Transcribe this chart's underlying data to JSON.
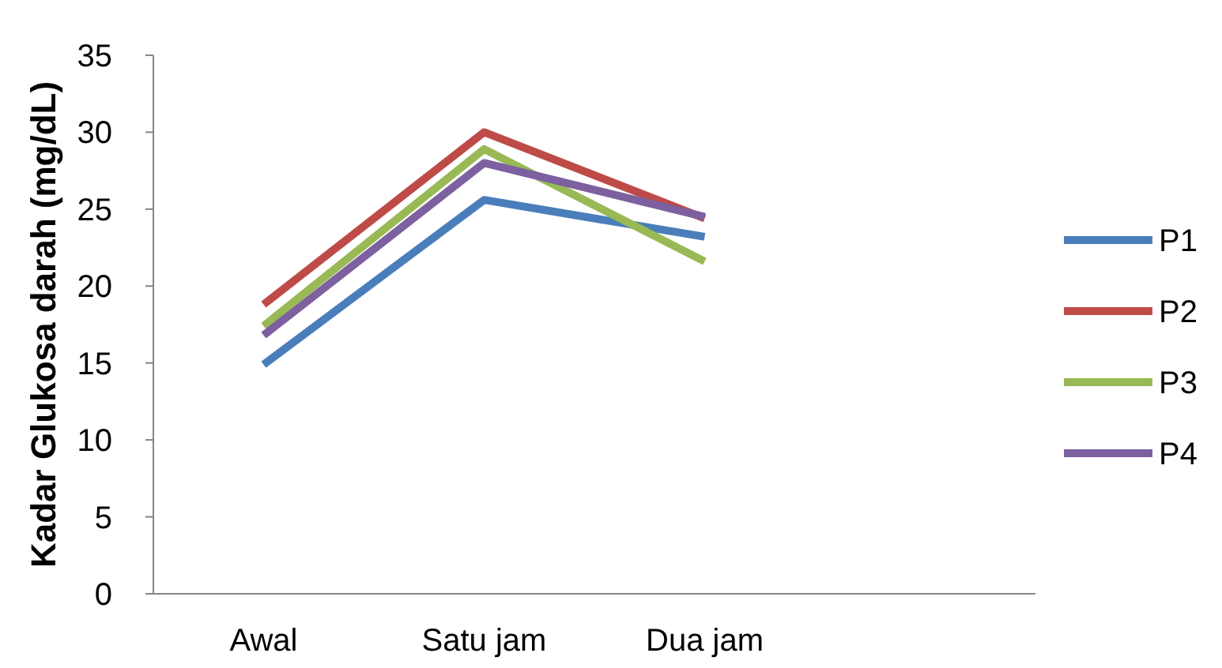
{
  "chart_data": {
    "type": "line",
    "ylabel": "Kadar Glukosa darah (mg/dL)",
    "categories": [
      "Awal",
      "Satu jam",
      "Dua jam",
      null
    ],
    "series": [
      {
        "name": "P1",
        "color": "#4a7ebb",
        "values": [
          14.9,
          25.6,
          23.2,
          null
        ]
      },
      {
        "name": "P2",
        "color": "#be4b48",
        "values": [
          18.8,
          30.0,
          24.4,
          null
        ]
      },
      {
        "name": "P3",
        "color": "#98b954",
        "values": [
          17.4,
          28.9,
          21.6,
          null
        ]
      },
      {
        "name": "P4",
        "color": "#7d60a0",
        "values": [
          16.8,
          28.0,
          24.5,
          null
        ]
      }
    ],
    "ylim": [
      0,
      35
    ],
    "yticks": [
      0,
      5,
      10,
      15,
      20,
      25,
      30,
      35
    ],
    "grid": false,
    "legend": "right",
    "marker": "none",
    "line_style": "solid"
  }
}
